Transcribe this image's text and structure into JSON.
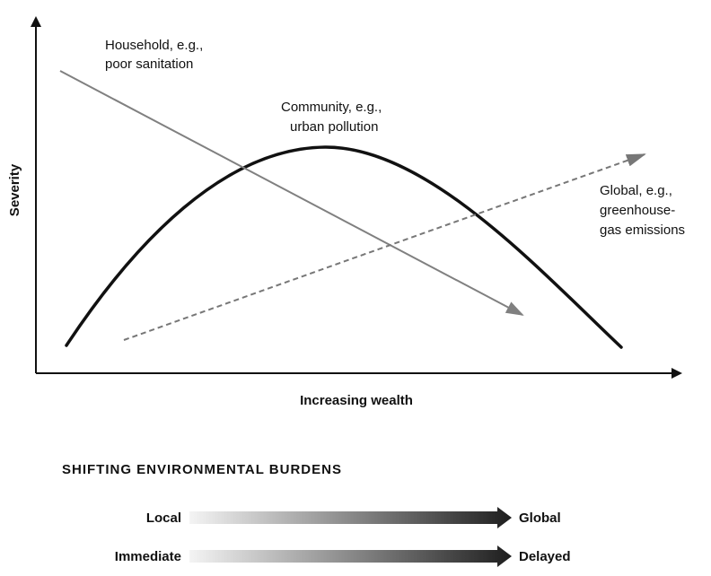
{
  "diagram": {
    "y_axis_label": "Severity",
    "x_axis_label": "Increasing wealth",
    "curves": {
      "household": {
        "label_line1": "Household, e.g.,",
        "label_line2": "poor sanitation",
        "color": "#808080",
        "style": "solid"
      },
      "community": {
        "label_line1": "Community, e.g.,",
        "label_line2": "urban pollution",
        "color": "#111111",
        "style": "solid"
      },
      "global": {
        "label_line1": "Global, e.g.,",
        "label_line2": "greenhouse-",
        "label_line3": "gas emissions",
        "color": "#777777",
        "style": "dashed"
      }
    }
  },
  "burdens": {
    "title": "SHIFTING ENVIRONMENTAL BURDENS",
    "rows": [
      {
        "from": "Local",
        "to": "Global"
      },
      {
        "from": "Immediate",
        "to": "Delayed"
      }
    ],
    "gradient_start_color": "#f4f4f4",
    "gradient_end_color": "#1e1e1e"
  }
}
